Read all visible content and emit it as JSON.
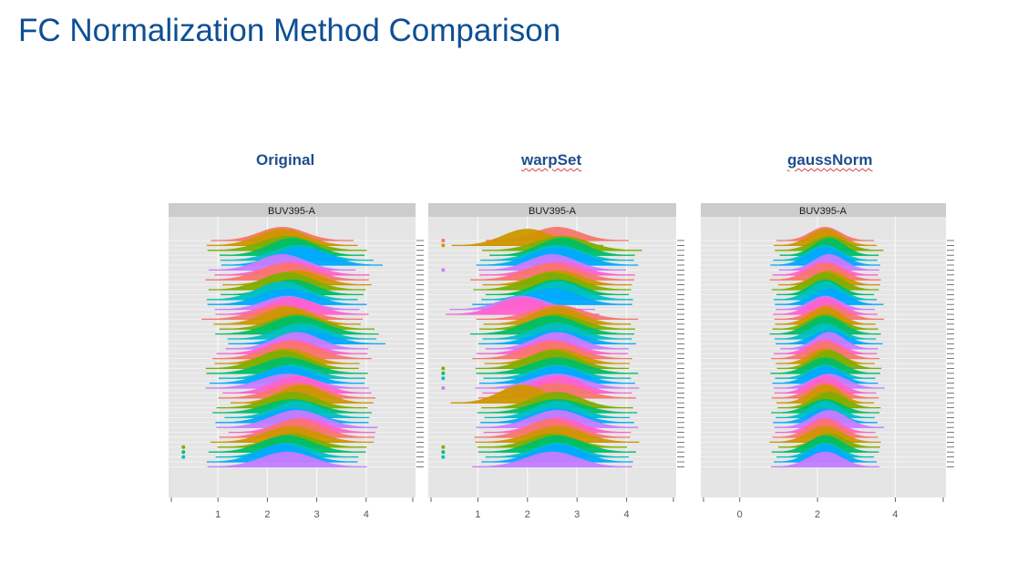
{
  "slide_title": "FC Normalization Method Comparison",
  "chart_data": [
    {
      "type": "area",
      "title": "Original",
      "strip_label": "BUV395-A",
      "x_ticks": [
        1,
        2,
        3,
        4
      ],
      "xlim": [
        0,
        5
      ],
      "sample_count": 47,
      "peak_x": [
        2.3,
        2.3,
        2.4,
        2.5,
        2.6,
        2.7,
        2.3,
        2.5,
        2.4,
        2.6,
        2.4,
        2.5,
        2.3,
        2.4,
        2.4,
        2.5,
        2.3,
        2.4,
        2.6,
        2.6,
        2.7,
        2.8,
        2.6,
        2.5,
        2.5,
        2.4,
        2.3,
        2.4,
        2.5,
        2.4,
        2.4,
        2.6,
        2.6,
        2.7,
        2.5,
        2.5,
        2.6,
        2.5,
        2.6,
        2.7,
        2.6,
        2.5,
        2.5,
        2.4,
        2.4,
        2.3,
        2.4
      ],
      "outlier_x": [
        [],
        [],
        [],
        [],
        [],
        [],
        [],
        [],
        [],
        [],
        [],
        [],
        [],
        [],
        [],
        [],
        [],
        [],
        [],
        [],
        [],
        [],
        [],
        [],
        [],
        [],
        [],
        [],
        [],
        [],
        [],
        [],
        [],
        [],
        [],
        [],
        [],
        [],
        [],
        [],
        [],
        [],
        [
          0.3
        ],
        [
          0.3
        ],
        [
          0.3
        ],
        [],
        []
      ],
      "outlier_row_note": ""
    },
    {
      "type": "area",
      "title": "warpSet",
      "strip_label": "BUV395-A",
      "x_ticks": [
        1,
        2,
        3,
        4
      ],
      "xlim": [
        0,
        5
      ],
      "sample_count": 47,
      "peak_x": [
        2.6,
        2.0,
        2.7,
        2.7,
        2.6,
        2.6,
        2.5,
        2.6,
        2.5,
        2.6,
        2.5,
        2.6,
        2.6,
        2.5,
        1.9,
        1.9,
        2.6,
        2.6,
        2.6,
        2.5,
        2.6,
        2.6,
        2.6,
        2.5,
        2.5,
        2.6,
        2.5,
        2.6,
        2.6,
        2.6,
        2.6,
        2.6,
        2.6,
        1.9,
        2.6,
        2.6,
        2.6,
        2.6,
        2.6,
        2.6,
        2.5,
        2.6,
        2.5,
        2.6,
        2.6,
        2.6,
        2.5
      ],
      "outlier_x": [
        [
          0.3
        ],
        [
          0.3
        ],
        [],
        [],
        [],
        [],
        [
          0.3
        ],
        [],
        [],
        [],
        [],
        [],
        [],
        [],
        [],
        [],
        [],
        [],
        [],
        [],
        [],
        [],
        [],
        [],
        [],
        [],
        [
          0.3
        ],
        [
          0.3
        ],
        [
          0.3
        ],
        [],
        [
          0.3
        ],
        [],
        [],
        [],
        [],
        [],
        [],
        [],
        [],
        [],
        [],
        [],
        [
          0.3
        ],
        [
          0.3
        ],
        [
          0.3
        ],
        [],
        []
      ]
    },
    {
      "type": "area",
      "title": "gaussNorm",
      "strip_label": "BUV395-A",
      "x_ticks": [
        0,
        2,
        4
      ],
      "xlim": [
        -1.0,
        5.3
      ],
      "sample_count": 47,
      "peak_x": [
        2.2,
        2.2,
        2.3,
        2.3,
        2.2,
        2.2,
        2.3,
        2.2,
        2.2,
        2.3,
        2.2,
        2.2,
        2.2,
        2.3,
        2.2,
        2.2,
        2.3,
        2.2,
        2.2,
        2.2,
        2.2,
        2.3,
        2.3,
        2.2,
        2.2,
        2.2,
        2.3,
        2.2,
        2.2,
        2.2,
        2.3,
        2.2,
        2.2,
        2.2,
        2.3,
        2.2,
        2.2,
        2.2,
        2.3,
        2.2,
        2.2,
        2.2,
        2.3,
        2.2,
        2.2,
        2.2,
        2.2
      ],
      "outlier_x": [
        [],
        [],
        [],
        [],
        [],
        [],
        [],
        [],
        [],
        [],
        [],
        [],
        [],
        [],
        [],
        [],
        [],
        [],
        [],
        [],
        [],
        [],
        [],
        [],
        [],
        [],
        [],
        [],
        [],
        [],
        [],
        [],
        [],
        [],
        [],
        [],
        [],
        [],
        [],
        [],
        [],
        [],
        [],
        [],
        [],
        [],
        []
      ]
    }
  ],
  "colors": {
    "title": "#0d4f94",
    "method_label": "#1f4e8c",
    "panel_bg": "#e5e5e5",
    "strip_bg": "#cccccc",
    "grid": "#f7f7f7",
    "palette": [
      "#f8766d",
      "#cd9600",
      "#7cae00",
      "#00be67",
      "#00bfc4",
      "#00a9ff",
      "#c77cff",
      "#ff61cc"
    ]
  }
}
